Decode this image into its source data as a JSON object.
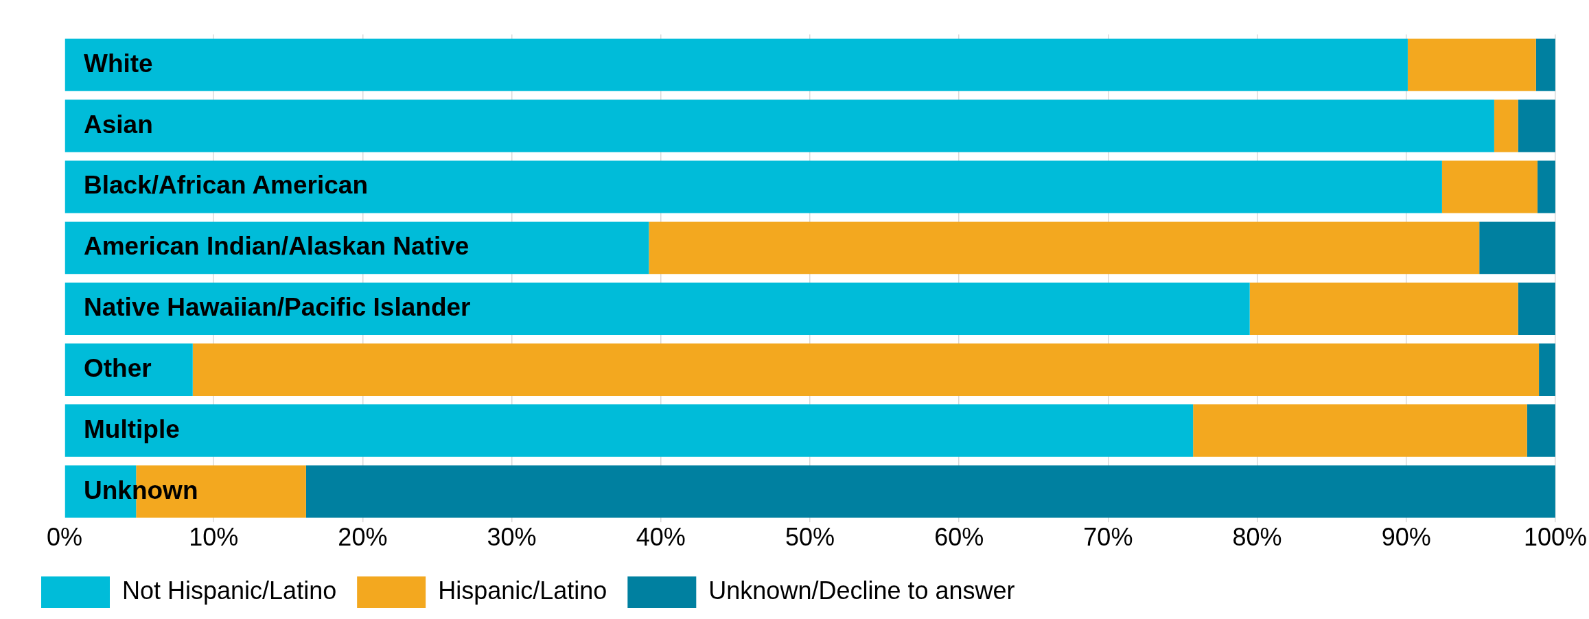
{
  "chart_data": {
    "type": "bar",
    "orientation": "horizontal",
    "stacked": true,
    "grid": "x",
    "legend": "bottom left",
    "categories": [
      "White",
      "Asian",
      "Black/African American",
      "American Indian/Alaskan Native",
      "Native Hawaiian/Pacific Islander",
      "Other",
      "Multiple",
      "Unknown"
    ],
    "series": [
      {
        "name": "Not Hispanic/Latino",
        "color": "#00bcd9",
        "values": [
          90.1,
          95.9,
          92.4,
          39.2,
          79.5,
          8.6,
          75.7,
          4.8
        ]
      },
      {
        "name": "Hispanic/Latino",
        "color": "#f3a81f",
        "values": [
          8.6,
          1.6,
          6.4,
          55.7,
          18.0,
          90.3,
          22.4,
          11.4
        ]
      },
      {
        "name": "Unknown/Decline to answer",
        "color": "#0080a0",
        "values": [
          1.3,
          2.5,
          1.2,
          5.1,
          2.5,
          1.1,
          1.9,
          83.8
        ]
      }
    ],
    "xlim": [
      0,
      100
    ],
    "xticks": [
      {
        "value": 0,
        "label": "0%"
      },
      {
        "value": 10,
        "label": "10%"
      },
      {
        "value": 20,
        "label": "20%"
      },
      {
        "value": 30,
        "label": "30%"
      },
      {
        "value": 40,
        "label": "40%"
      },
      {
        "value": 50,
        "label": "50%"
      },
      {
        "value": 60,
        "label": "60%"
      },
      {
        "value": 70,
        "label": "70%"
      },
      {
        "value": 80,
        "label": "80%"
      },
      {
        "value": 90,
        "label": "90%"
      },
      {
        "value": 100,
        "label": "100%"
      }
    ]
  }
}
